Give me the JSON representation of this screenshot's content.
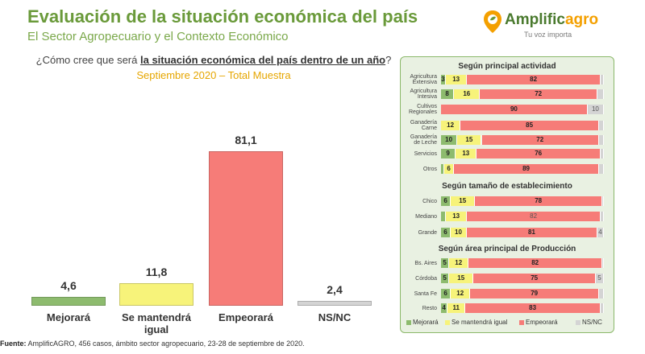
{
  "header": {
    "title": "Evaluación de la situación económica del país",
    "subtitle": "El Sector Agropecuario y el Contexto Económico"
  },
  "logo": {
    "name_part1": "Amplific",
    "name_part2": "agro",
    "tagline": "Tu voz importa"
  },
  "question": {
    "prefix": "¿Cómo cree que será ",
    "emphasis": "la situación económica del país dentro de un año",
    "suffix": "?",
    "sample": "Septiembre 2020 – Total Muestra"
  },
  "colors": {
    "mejorara": "#8dbb6e",
    "mantendra": "#f7f37a",
    "empeorara": "#f67c78",
    "nsnc": "#d4d4d4",
    "title_green": "#6a9a3a",
    "accent_orange": "#f4a000"
  },
  "chart_data": [
    {
      "type": "bar",
      "title": "Septiembre 2020 – Total Muestra",
      "categories": [
        "Mejorará",
        "Se mantendrá igual",
        "Empeorará",
        "NS/NC"
      ],
      "values": [
        4.6,
        11.8,
        81.1,
        2.4
      ],
      "value_labels": [
        "4,6",
        "11,8",
        "81,1",
        "2,4"
      ],
      "ylim": [
        0,
        100
      ]
    },
    {
      "type": "bar",
      "stacked": true,
      "orientation": "horizontal",
      "sections": [
        {
          "title": "Según principal actividad",
          "rows": [
            {
              "label_lines": [
                "Agricultura",
                "Extensiva"
              ],
              "values": [
                3,
                13,
                82,
                2
              ],
              "labels": [
                "3",
                "13",
                "82",
                ""
              ]
            },
            {
              "label_lines": [
                "Agricultura",
                "Intesiva"
              ],
              "values": [
                8,
                16,
                72,
                4
              ],
              "labels": [
                "8",
                "16",
                "72",
                ""
              ]
            },
            {
              "label_lines": [
                "Cultivos",
                "Regionales"
              ],
              "values": [
                0,
                0,
                90,
                10
              ],
              "labels": [
                "",
                "",
                "90",
                "10"
              ]
            },
            {
              "label_lines": [
                "Ganadería",
                "Carne"
              ],
              "values": [
                0,
                12,
                85,
                3
              ],
              "labels": [
                "",
                "12",
                "85",
                ""
              ]
            },
            {
              "label_lines": [
                "Ganadería",
                "de Leche"
              ],
              "values": [
                10,
                15,
                72,
                3
              ],
              "labels": [
                "10",
                "15",
                "72",
                ""
              ]
            },
            {
              "label_lines": [
                "Servicios"
              ],
              "values": [
                9,
                13,
                76,
                2
              ],
              "labels": [
                "9",
                "13",
                "76",
                ""
              ]
            },
            {
              "label_lines": [
                "Otros"
              ],
              "values": [
                2,
                6,
                89,
                3
              ],
              "labels": [
                "",
                "6",
                "89",
                ""
              ]
            }
          ]
        },
        {
          "title": "Según tamaño de establecimiento",
          "rows": [
            {
              "label_lines": [
                "Chico"
              ],
              "values": [
                6,
                15,
                78,
                1
              ],
              "labels": [
                "6",
                "15",
                "78",
                ""
              ]
            },
            {
              "label_lines": [
                "Mediano"
              ],
              "values": [
                3,
                13,
                82,
                2
              ],
              "labels": [
                "",
                "13",
                "82",
                ""
              ]
            },
            {
              "label_lines": [
                "Grande"
              ],
              "values": [
                6,
                10,
                81,
                4
              ],
              "labels": [
                "6",
                "10",
                "81",
                "4"
              ]
            }
          ]
        },
        {
          "title": "Según área principal de Producción",
          "rows": [
            {
              "label_lines": [
                "Bs. Aires"
              ],
              "values": [
                5,
                12,
                82,
                1
              ],
              "labels": [
                "5",
                "12",
                "82",
                ""
              ]
            },
            {
              "label_lines": [
                "Córdoba"
              ],
              "values": [
                5,
                15,
                75,
                5
              ],
              "labels": [
                "5",
                "15",
                "75",
                "5"
              ]
            },
            {
              "label_lines": [
                "Santa Fe"
              ],
              "values": [
                6,
                12,
                79,
                3
              ],
              "labels": [
                "6",
                "12",
                "79",
                ""
              ]
            },
            {
              "label_lines": [
                "Resto"
              ],
              "values": [
                4,
                11,
                83,
                2
              ],
              "labels": [
                "4",
                "11",
                "83",
                ""
              ]
            }
          ]
        }
      ],
      "legend": [
        "Mejorará",
        "Se mantendrá igual",
        "Empeorará",
        "NS/NC"
      ]
    }
  ],
  "footer": {
    "label": "Fuente:",
    "text": " AmplificAGRO, 456 casos, ámbito sector agropecuario, 23-28 de septiembre de 2020."
  }
}
